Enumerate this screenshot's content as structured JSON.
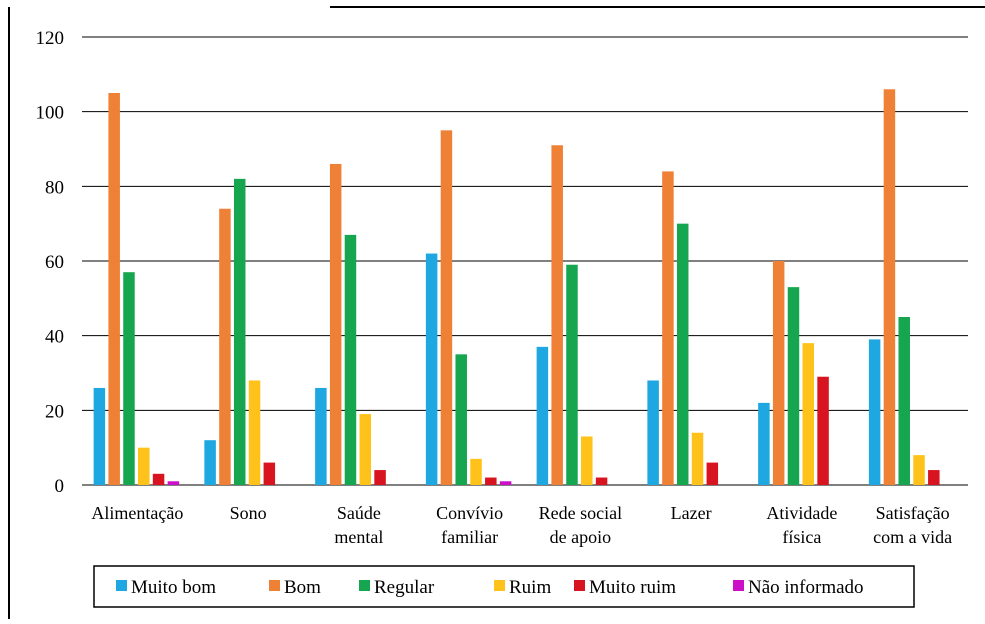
{
  "chart_data": {
    "type": "bar",
    "categories": [
      [
        "Alimentação"
      ],
      [
        "Sono"
      ],
      [
        "Saúde",
        "mental"
      ],
      [
        "Convívio",
        "familiar"
      ],
      [
        "Rede social",
        "de apoio"
      ],
      [
        "Lazer"
      ],
      [
        "Atividade",
        "física"
      ],
      [
        "Satisfação",
        "com a vida"
      ]
    ],
    "series": [
      {
        "name": "Muito bom",
        "color": "#1FA7E1",
        "values": [
          26,
          12,
          26,
          62,
          37,
          28,
          22,
          39
        ]
      },
      {
        "name": "Bom",
        "color": "#EE8135",
        "values": [
          105,
          74,
          86,
          95,
          91,
          84,
          60,
          106
        ]
      },
      {
        "name": "Regular",
        "color": "#16A650",
        "values": [
          57,
          82,
          67,
          35,
          59,
          70,
          53,
          45
        ]
      },
      {
        "name": "Ruim",
        "color": "#FFC21A",
        "values": [
          10,
          28,
          19,
          7,
          13,
          14,
          38,
          8
        ]
      },
      {
        "name": "Muito ruim",
        "color": "#D7141F",
        "values": [
          3,
          6,
          4,
          2,
          2,
          6,
          29,
          4
        ]
      },
      {
        "name": "Não informado",
        "color": "#CC10C8",
        "values": [
          1,
          0,
          0,
          1,
          0,
          0,
          0,
          0
        ]
      }
    ],
    "yticks": [
      "0",
      "20",
      "40",
      "60",
      "80",
      "100",
      "120"
    ],
    "ylim": [
      0,
      120
    ],
    "grid": true,
    "legend_position": "bottom",
    "title": "",
    "xlabel": "",
    "ylabel": ""
  }
}
